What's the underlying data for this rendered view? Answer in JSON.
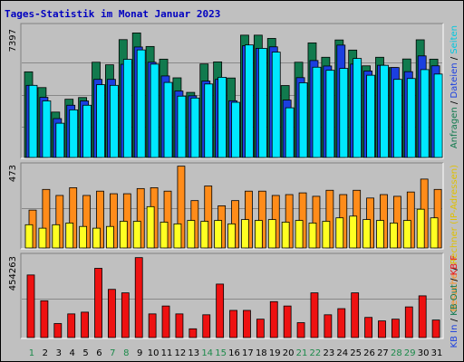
{
  "title": "Tages-Statistik im Monat Januar 2023",
  "colors": {
    "background": "#c0c0c0",
    "title": "#0000c0",
    "requests": "#117a4e",
    "files": "#1b3fe0",
    "pages": "#00e8ff",
    "visits": "#ff8c1a",
    "sites": "#ffff22",
    "kb": "#ee1111",
    "weekend_label": "#1c8a4a",
    "weekday_label": "#000000"
  },
  "side_labels": {
    "panel1": [
      {
        "text": "Anfragen",
        "color": "#117a4e"
      },
      {
        "text": "Dateien",
        "color": "#1b3fe0"
      },
      {
        "text": "Seiten",
        "color": "#00c8e0"
      }
    ],
    "panel2": [
      {
        "text": "Besuche",
        "color": "#ff8c1a"
      },
      {
        "text": "Rechner (IP-Adressen)",
        "color": "#e0c000"
      }
    ],
    "panel3": [
      {
        "text": "KB In",
        "color": "#1b3fe0"
      },
      {
        "text": "KB Out",
        "color": "#117a4e"
      },
      {
        "text": "KB F",
        "color": "#ee1111"
      }
    ],
    "separator": "/"
  },
  "chart_data": [
    {
      "type": "bar",
      "panel": "requests-files-pages",
      "ylim": [
        0,
        7397
      ],
      "ymax_label": "7397",
      "categories": [
        "1",
        "2",
        "3",
        "4",
        "5",
        "6",
        "7",
        "8",
        "9",
        "10",
        "11",
        "12",
        "13",
        "14",
        "15",
        "16",
        "17",
        "18",
        "19",
        "20",
        "21",
        "22",
        "23",
        "24",
        "25",
        "26",
        "27",
        "28",
        "29",
        "30",
        "31"
      ],
      "weekend_days": [
        "1",
        "7",
        "8",
        "14",
        "15",
        "21",
        "22",
        "28",
        "29"
      ],
      "series": [
        {
          "name": "Anfragen",
          "values": [
            5000,
            4080,
            2650,
            3400,
            3500,
            5560,
            5410,
            6880,
            7270,
            6480,
            5740,
            4650,
            3800,
            5460,
            5580,
            4640,
            7140,
            7140,
            6950,
            4200,
            5560,
            6690,
            5850,
            6860,
            6270,
            5350,
            5850,
            5250,
            5750,
            6870,
            5740
          ]
        },
        {
          "name": "Dateien",
          "values": [
            4210,
            3510,
            2270,
            3050,
            3300,
            4560,
            4560,
            5440,
            6450,
            5560,
            4760,
            3880,
            3600,
            4460,
            4560,
            3310,
            6520,
            6370,
            6460,
            3350,
            4660,
            5660,
            5340,
            6560,
            5450,
            5050,
            5380,
            5250,
            5010,
            5930,
            5350
          ]
        },
        {
          "name": "Seiten",
          "values": [
            4210,
            3300,
            2000,
            2780,
            3050,
            4250,
            4210,
            5730,
            6280,
            5450,
            4380,
            3580,
            3470,
            4290,
            4680,
            3220,
            6570,
            6370,
            6150,
            2900,
            4360,
            5270,
            5090,
            5200,
            5780,
            4800,
            5380,
            4560,
            4610,
            5130,
            4870
          ]
        }
      ]
    },
    {
      "type": "bar",
      "panel": "visits-sites",
      "ylim": [
        0,
        473
      ],
      "ymax_label": "473",
      "categories": [
        "1",
        "2",
        "3",
        "4",
        "5",
        "6",
        "7",
        "8",
        "9",
        "10",
        "11",
        "12",
        "13",
        "14",
        "15",
        "16",
        "17",
        "18",
        "19",
        "20",
        "21",
        "22",
        "23",
        "24",
        "25",
        "26",
        "27",
        "28",
        "29",
        "30",
        "31"
      ],
      "series": [
        {
          "name": "Besuche",
          "values": [
            220,
            340,
            305,
            350,
            305,
            330,
            315,
            315,
            345,
            350,
            330,
            475,
            275,
            360,
            245,
            275,
            330,
            330,
            305,
            310,
            320,
            300,
            335,
            310,
            335,
            290,
            310,
            300,
            325,
            400,
            340
          ]
        },
        {
          "name": "Rechner (IP-Adressen)",
          "values": [
            135,
            115,
            135,
            145,
            125,
            115,
            125,
            155,
            155,
            240,
            150,
            140,
            160,
            155,
            160,
            140,
            165,
            160,
            165,
            150,
            160,
            145,
            155,
            175,
            185,
            165,
            160,
            145,
            160,
            225,
            175
          ]
        }
      ]
    },
    {
      "type": "bar",
      "panel": "kb-f",
      "ylim": [
        0,
        454263
      ],
      "ymax_label": "454263",
      "categories": [
        "1",
        "2",
        "3",
        "4",
        "5",
        "6",
        "7",
        "8",
        "9",
        "10",
        "11",
        "12",
        "13",
        "14",
        "15",
        "16",
        "17",
        "18",
        "19",
        "20",
        "21",
        "22",
        "23",
        "24",
        "25",
        "26",
        "27",
        "28",
        "29",
        "30",
        "31"
      ],
      "series": [
        {
          "name": "KB F",
          "values": [
            357000,
            210000,
            80000,
            135000,
            145000,
            395000,
            275000,
            255000,
            456000,
            135000,
            180000,
            135000,
            50000,
            130000,
            305000,
            155000,
            155000,
            105000,
            205000,
            180000,
            85000,
            255000,
            130000,
            165000,
            255000,
            115000,
            95000,
            105000,
            175000,
            238000,
            100000
          ]
        }
      ]
    }
  ]
}
